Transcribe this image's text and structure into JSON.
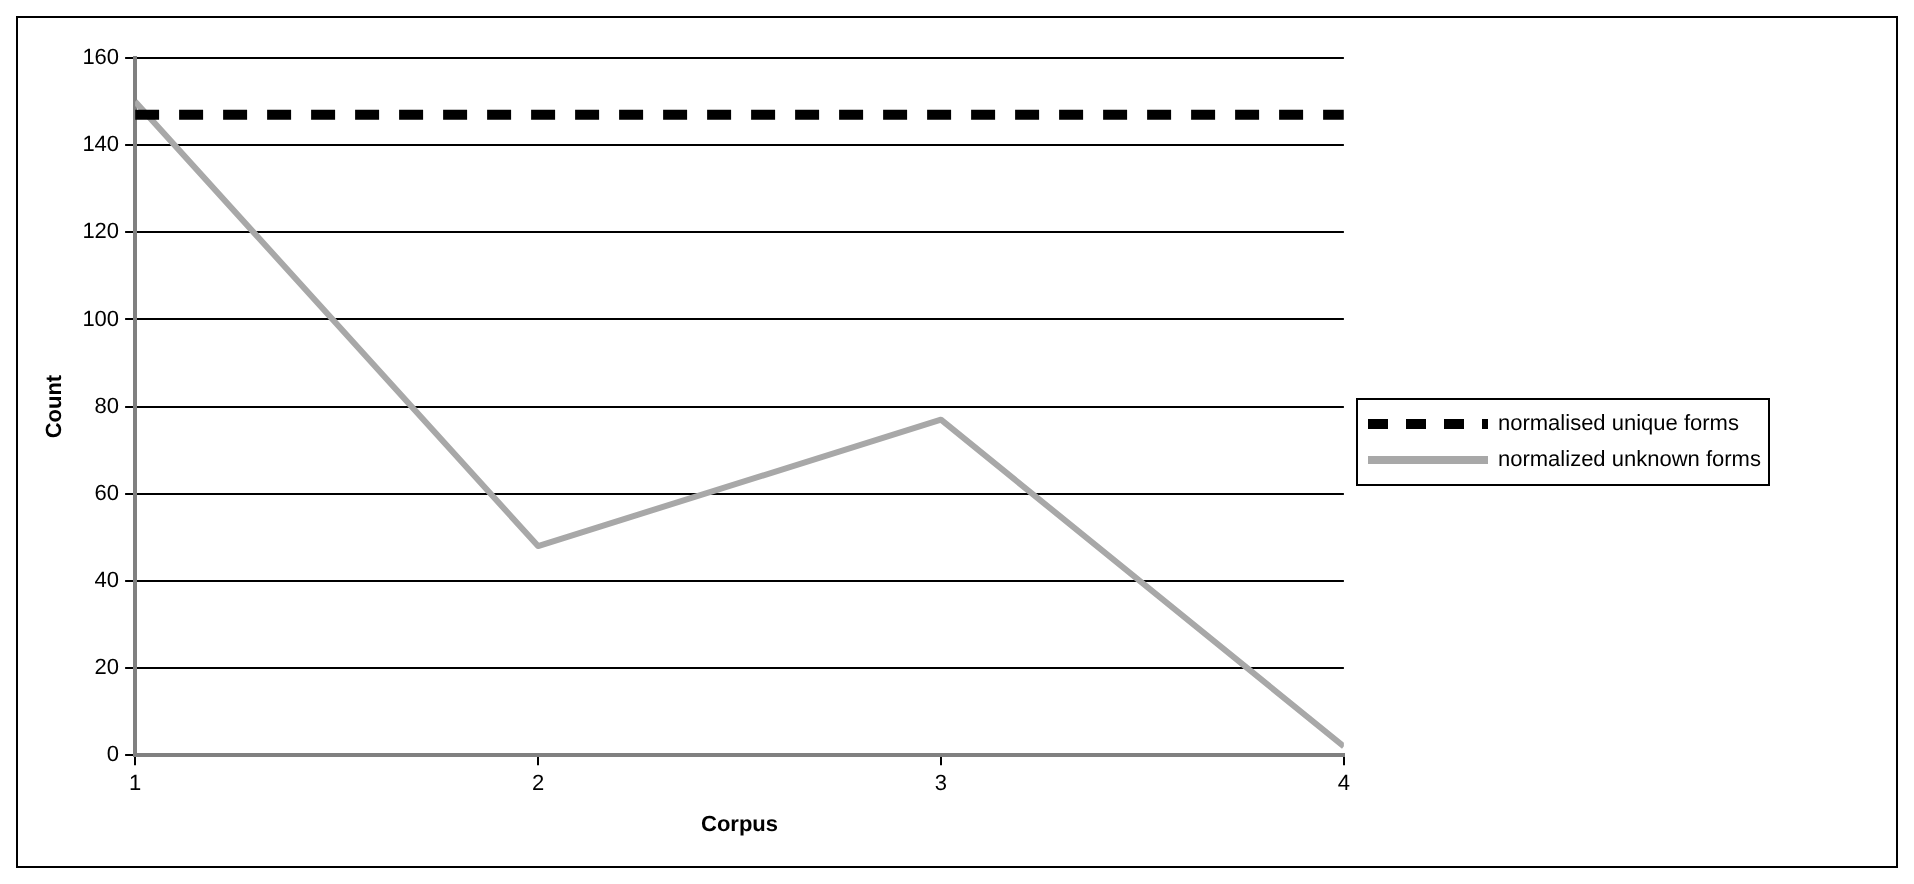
{
  "chart_data": {
    "type": "line",
    "xlabel": "Corpus",
    "ylabel": "Count",
    "x": [
      1,
      2,
      3,
      4
    ],
    "xlim": [
      1,
      4
    ],
    "xticks": [
      1,
      2,
      3,
      4
    ],
    "ylim": [
      0,
      160
    ],
    "yticks": [
      0,
      20,
      40,
      60,
      80,
      100,
      120,
      140,
      160
    ],
    "grid": "y",
    "legend": "right",
    "marker": "none",
    "series": [
      {
        "name": "normalised unique forms",
        "color": "#000000",
        "line_style": "dashed",
        "values": [
          147,
          147,
          147,
          147
        ]
      },
      {
        "name": "normalized unknown forms",
        "color": "#a8a8a8",
        "line_style": "solid",
        "values": [
          150,
          48,
          77,
          2
        ]
      }
    ]
  }
}
